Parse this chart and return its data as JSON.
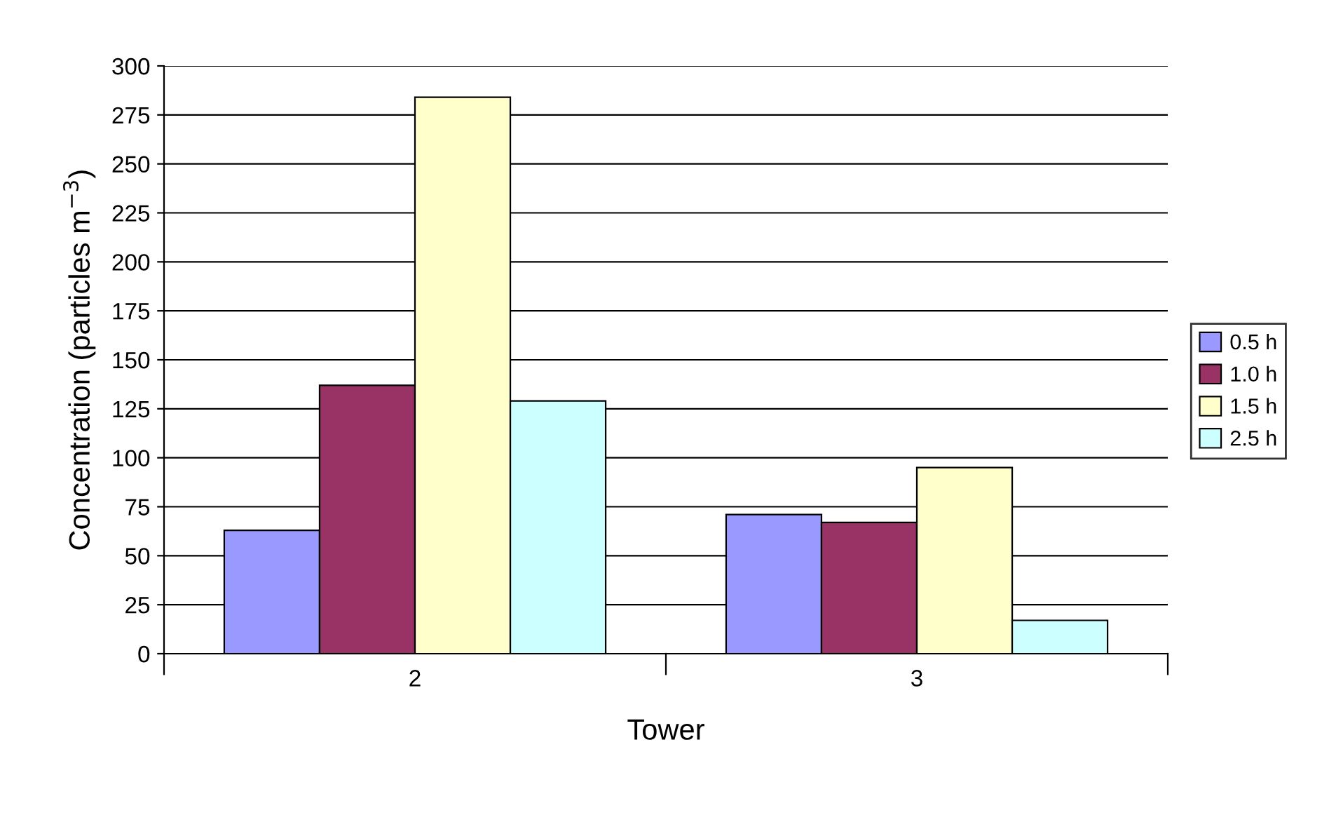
{
  "chart_data": {
    "type": "bar",
    "xlabel": "Tower",
    "ylabel": "Concentration (particles m$^{−3}$)",
    "categories": [
      "2",
      "3"
    ],
    "series": [
      {
        "name": "0.5 h",
        "color": "#9999ff",
        "values": [
          63,
          71
        ]
      },
      {
        "name": "1.0 h",
        "color": "#993366",
        "values": [
          137,
          67
        ]
      },
      {
        "name": "1.5 h",
        "color": "#ffffcc",
        "values": [
          284,
          95
        ]
      },
      {
        "name": "2.5 h",
        "color": "#ccffff",
        "values": [
          129,
          17
        ]
      }
    ],
    "ylim": [
      0,
      300
    ],
    "yticks": [
      0,
      25,
      50,
      75,
      100,
      125,
      150,
      175,
      200,
      225,
      250,
      275,
      300
    ],
    "grid": "y",
    "legend": "right"
  }
}
